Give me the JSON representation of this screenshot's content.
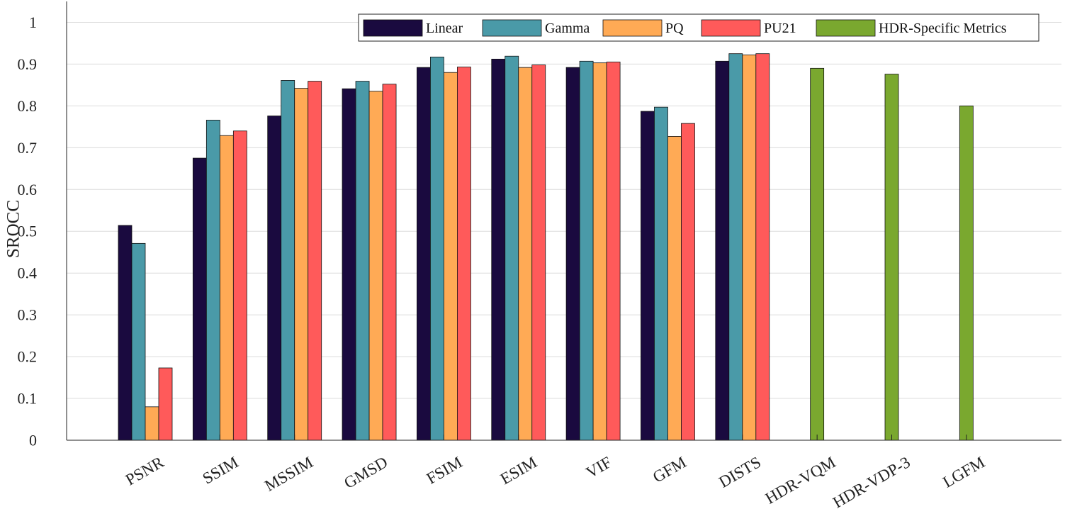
{
  "chart_data": {
    "type": "bar",
    "ylabel": "SROCC",
    "xlabel": "",
    "ylim": [
      0,
      1.05
    ],
    "yticks": [
      "0",
      "0.1",
      "0.2",
      "0.3",
      "0.4",
      "0.5",
      "0.6",
      "0.7",
      "0.8",
      "0.9",
      "1"
    ],
    "grid": "horizontal",
    "legend_position": "top-right",
    "categories": [
      "PSNR",
      "SSIM",
      "MSSIM",
      "GMSD",
      "FSIM",
      "ESIM",
      "VIF",
      "GFM",
      "DISTS",
      "HDR-VQM",
      "HDR-VDP-3",
      "LGFM"
    ],
    "series": [
      {
        "name": "Linear",
        "color": "#1a0a3f",
        "values": [
          0.514,
          0.675,
          0.776,
          0.841,
          0.892,
          0.912,
          0.892,
          0.787,
          0.907,
          null,
          null,
          null
        ]
      },
      {
        "name": "Gamma",
        "color": "#4a9aa8",
        "values": [
          0.471,
          0.766,
          0.861,
          0.859,
          0.917,
          0.919,
          0.907,
          0.797,
          0.925,
          null,
          null,
          null
        ]
      },
      {
        "name": "PQ",
        "color": "#ffaa55",
        "values": [
          0.08,
          0.729,
          0.842,
          0.835,
          0.88,
          0.892,
          0.903,
          0.727,
          0.922,
          null,
          null,
          null
        ]
      },
      {
        "name": "PU21",
        "color": "#ff5a5a",
        "values": [
          0.173,
          0.74,
          0.859,
          0.852,
          0.893,
          0.898,
          0.905,
          0.758,
          0.925,
          null,
          null,
          null
        ]
      },
      {
        "name": "HDR-Specific Metrics",
        "color": "#7aa82f",
        "values": [
          null,
          null,
          null,
          null,
          null,
          null,
          null,
          null,
          null,
          0.89,
          0.876,
          0.8
        ]
      }
    ]
  }
}
